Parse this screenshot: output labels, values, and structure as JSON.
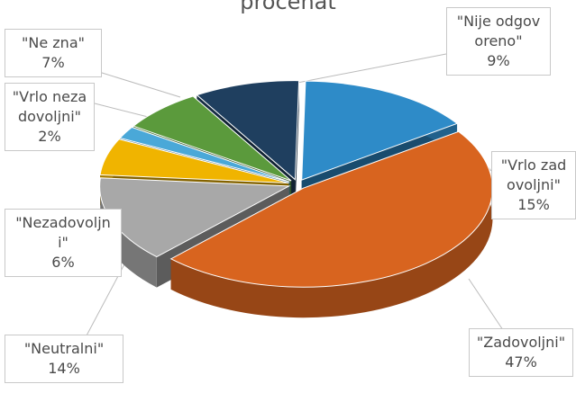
{
  "chart_data": {
    "type": "pie",
    "title": "procenat",
    "categories": [
      "\"Vrlo zadovoljni\"",
      "\"Zadovoljni\"",
      "\"Neutralni\"",
      "\"Nezadovoljni\"",
      "\"Vrlo nezadovoljni\"",
      "\"Ne zna\"",
      "\"Nije odgovoreno\""
    ],
    "values": [
      15,
      47,
      14,
      6,
      2,
      7,
      9
    ],
    "value_labels": [
      "15%",
      "47%",
      "14%",
      "6%",
      "2%",
      "7%",
      "9%"
    ],
    "colors": [
      "#2e8bc8",
      "#d8641f",
      "#a8a8a8",
      "#f0b400",
      "#4aa8d8",
      "#5b9a3c",
      "#1f3f5f"
    ]
  }
}
